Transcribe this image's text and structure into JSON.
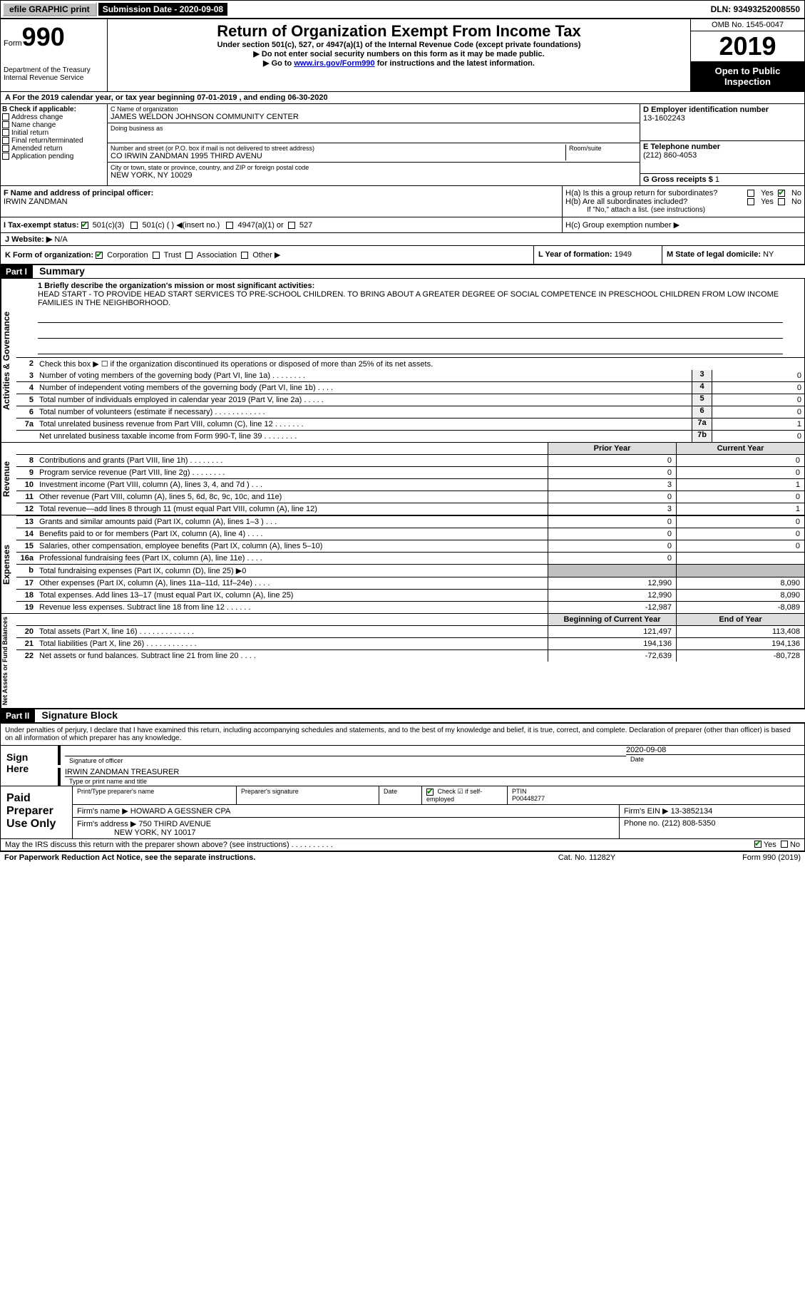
{
  "topbar": {
    "efile": "efile GRAPHIC print",
    "submission": "Submission Date - 2020-09-08",
    "dln": "DLN: 93493252008550"
  },
  "header": {
    "form_prefix": "Form",
    "form_no": "990",
    "dept": "Department of the Treasury\nInternal Revenue Service",
    "title": "Return of Organization Exempt From Income Tax",
    "sub": "Under section 501(c), 527, or 4947(a)(1) of the Internal Revenue Code (except private foundations)",
    "note1": "▶ Do not enter social security numbers on this form as it may be made public.",
    "note2_a": "▶ Go to ",
    "note2_link": "www.irs.gov/Form990",
    "note2_b": " for instructions and the latest information.",
    "omb": "OMB No. 1545-0047",
    "year": "2019",
    "open": "Open to Public Inspection"
  },
  "period": "A For the 2019 calendar year, or tax year beginning 07-01-2019    , and ending 06-30-2020",
  "sectionB": {
    "header": "B Check if applicable:",
    "items": [
      "Address change",
      "Name change",
      "Initial return",
      "Final return/terminated",
      "Amended return",
      "Application pending"
    ]
  },
  "sectionC": {
    "name_lbl": "C Name of organization",
    "name": "JAMES WELDON JOHNSON COMMUNITY CENTER",
    "dba_lbl": "Doing business as",
    "addr_lbl": "Number and street (or P.O. box if mail is not delivered to street address)",
    "addr": "CO IRWIN ZANDMAN 1995 THIRD AVENU",
    "suite_lbl": "Room/suite",
    "city_lbl": "City or town, state or province, country, and ZIP or foreign postal code",
    "city": "NEW YORK, NY  10029"
  },
  "sectionD": {
    "ein_lbl": "D Employer identification number",
    "ein": "13-1602243",
    "phone_lbl": "E Telephone number",
    "phone": "(212) 860-4053",
    "gross_lbl": "G Gross receipts $",
    "gross": "1"
  },
  "sectionF": {
    "lbl": "F  Name and address of principal officer:",
    "name": "IRWIN ZANDMAN"
  },
  "sectionH": {
    "ha": "H(a)  Is this a group return for subordinates?",
    "hb": "H(b)  Are all subordinates included?",
    "hb_note": "If \"No,\" attach a list. (see instructions)",
    "hc": "H(c)  Group exemption number ▶",
    "yes": "Yes",
    "no": "No"
  },
  "taxexempt": {
    "lbl": "I   Tax-exempt status:",
    "opt1": "501(c)(3)",
    "opt2": "501(c) (  ) ◀(insert no.)",
    "opt3": "4947(a)(1) or",
    "opt4": "527"
  },
  "websiteJ": {
    "lbl": "J   Website: ▶",
    "val": "N/A"
  },
  "rowK": {
    "lbl": "K Form of organization:",
    "opts": [
      "Corporation",
      "Trust",
      "Association",
      "Other ▶"
    ],
    "l_lbl": "L Year of formation:",
    "l_val": "1949",
    "m_lbl": "M State of legal domicile:",
    "m_val": "NY"
  },
  "part1": {
    "hdr": "Part I",
    "title": "Summary"
  },
  "summary": {
    "line1_lbl": "1   Briefly describe the organization's mission or most significant activities:",
    "line1_txt": "HEAD START - TO PROVIDE HEAD START SERVICES TO PRE-SCHOOL CHILDREN. TO BRING ABOUT A GREATER DEGREE OF SOCIAL COMPETENCE IN PRESCHOOL CHILDREN FROM LOW INCOME FAMILIES IN THE NEIGHBORHOOD.",
    "line2": "Check this box ▶ ☐  if the organization discontinued its operations or disposed of more than 25% of its net assets.",
    "rows": [
      {
        "n": "3",
        "d": "Number of voting members of the governing body (Part VI, line 1a)   .   .   .   .   .   .   .   .",
        "b": "3",
        "v": "0"
      },
      {
        "n": "4",
        "d": "Number of independent voting members of the governing body (Part VI, line 1b)   .   .   .   .",
        "b": "4",
        "v": "0"
      },
      {
        "n": "5",
        "d": "Total number of individuals employed in calendar year 2019 (Part V, line 2a)   .   .   .   .   .",
        "b": "5",
        "v": "0"
      },
      {
        "n": "6",
        "d": "Total number of volunteers (estimate if necessary)   .   .   .   .   .   .   .   .   .   .   .   .",
        "b": "6",
        "v": "0"
      },
      {
        "n": "7a",
        "d": "Total unrelated business revenue from Part VIII, column (C), line 12   .   .   .   .   .   .   .",
        "b": "7a",
        "v": "1"
      },
      {
        "n": "",
        "d": "Net unrelated business taxable income from Form 990-T, line 39   .   .   .   .   .   .   .   .",
        "b": "7b",
        "v": "0"
      }
    ]
  },
  "revenue": {
    "hdr_py": "Prior Year",
    "hdr_cy": "Current Year",
    "rows": [
      {
        "n": "8",
        "d": "Contributions and grants (Part VIII, line 1h)   .   .   .   .   .   .   .   .",
        "py": "0",
        "cy": "0"
      },
      {
        "n": "9",
        "d": "Program service revenue (Part VIII, line 2g)   .   .   .   .   .   .   .   .",
        "py": "0",
        "cy": "0"
      },
      {
        "n": "10",
        "d": "Investment income (Part VIII, column (A), lines 3, 4, and 7d )   .   .   .",
        "py": "3",
        "cy": "1"
      },
      {
        "n": "11",
        "d": "Other revenue (Part VIII, column (A), lines 5, 6d, 8c, 9c, 10c, and 11e)",
        "py": "0",
        "cy": "0"
      },
      {
        "n": "12",
        "d": "Total revenue—add lines 8 through 11 (must equal Part VIII, column (A), line 12)",
        "py": "3",
        "cy": "1"
      }
    ]
  },
  "expenses": {
    "rows": [
      {
        "n": "13",
        "d": "Grants and similar amounts paid (Part IX, column (A), lines 1–3 )   .   .   .",
        "py": "0",
        "cy": "0"
      },
      {
        "n": "14",
        "d": "Benefits paid to or for members (Part IX, column (A), line 4)   .   .   .   .",
        "py": "0",
        "cy": "0"
      },
      {
        "n": "15",
        "d": "Salaries, other compensation, employee benefits (Part IX, column (A), lines 5–10)",
        "py": "0",
        "cy": "0"
      },
      {
        "n": "16a",
        "d": "Professional fundraising fees (Part IX, column (A), line 11e)   .   .   .   .",
        "py": "0",
        "cy": ""
      },
      {
        "n": "b",
        "d": "Total fundraising expenses (Part IX, column (D), line 25) ▶0",
        "py": "",
        "cy": "",
        "shade": true
      },
      {
        "n": "17",
        "d": "Other expenses (Part IX, column (A), lines 11a–11d, 11f–24e)   .   .   .   .",
        "py": "12,990",
        "cy": "8,090"
      },
      {
        "n": "18",
        "d": "Total expenses. Add lines 13–17 (must equal Part IX, column (A), line 25)",
        "py": "12,990",
        "cy": "8,090"
      },
      {
        "n": "19",
        "d": "Revenue less expenses. Subtract line 18 from line 12   .   .   .   .   .   .",
        "py": "-12,987",
        "cy": "-8,089"
      }
    ]
  },
  "netassets": {
    "hdr_py": "Beginning of Current Year",
    "hdr_cy": "End of Year",
    "rows": [
      {
        "n": "20",
        "d": "Total assets (Part X, line 16)   .   .   .   .   .   .   .   .   .   .   .   .   .",
        "py": "121,497",
        "cy": "113,408"
      },
      {
        "n": "21",
        "d": "Total liabilities (Part X, line 26)   .   .   .   .   .   .   .   .   .   .   .   .",
        "py": "194,136",
        "cy": "194,136"
      },
      {
        "n": "22",
        "d": "Net assets or fund balances. Subtract line 21 from line 20   .   .   .   .",
        "py": "-72,639",
        "cy": "-80,728"
      }
    ]
  },
  "part2": {
    "hdr": "Part II",
    "title": "Signature Block"
  },
  "sig": {
    "decl": "Under penalties of perjury, I declare that I have examined this return, including accompanying schedules and statements, and to the best of my knowledge and belief, it is true, correct, and complete. Declaration of preparer (other than officer) is based on all information of which preparer has any knowledge.",
    "sign_here": "Sign Here",
    "sig_lbl": "Signature of officer",
    "date_lbl": "Date",
    "date": "2020-09-08",
    "name": "IRWIN ZANDMAN  TREASURER",
    "name_lbl": "Type or print name and title"
  },
  "paid": {
    "lbl": "Paid Preparer Use Only",
    "h1": "Print/Type preparer's name",
    "h2": "Preparer's signature",
    "h3": "Date",
    "h4": "Check ☑ if self-employed",
    "h5_lbl": "PTIN",
    "h5": "P00448277",
    "firm_lbl": "Firm's name    ▶",
    "firm": "HOWARD A GESSNER CPA",
    "ein_lbl": "Firm's EIN ▶",
    "ein": "13-3852134",
    "addr_lbl": "Firm's address ▶",
    "addr1": "750 THIRD AVENUE",
    "addr2": "NEW YORK, NY  10017",
    "phone_lbl": "Phone no.",
    "phone": "(212) 808-5350"
  },
  "discuss": {
    "txt": "May the IRS discuss this return with the preparer shown above? (see instructions)   .   .   .   .   .   .   .   .   .   .",
    "yes": "Yes",
    "no": "No"
  },
  "footer": {
    "a": "For Paperwork Reduction Act Notice, see the separate instructions.",
    "b": "Cat. No. 11282Y",
    "c": "Form 990 (2019)"
  },
  "side_labels": {
    "ag": "Activities & Governance",
    "rev": "Revenue",
    "exp": "Expenses",
    "na": "Net Assets or Fund Balances"
  }
}
